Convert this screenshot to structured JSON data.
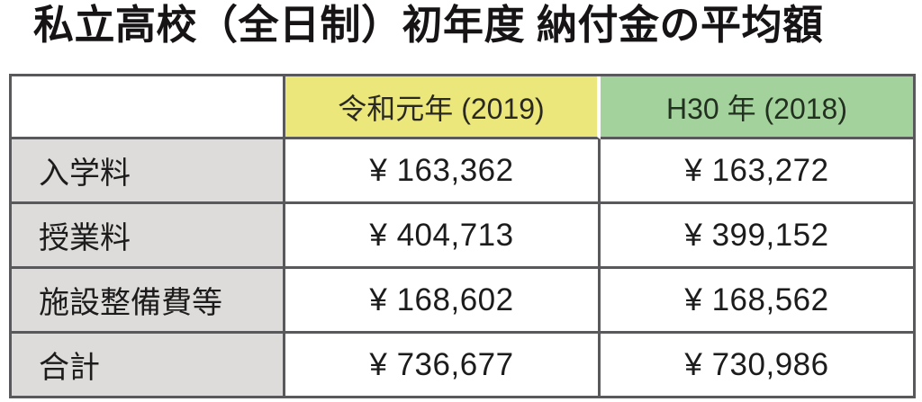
{
  "title": "私立高校（全日制）初年度 納付金の平均額",
  "table": {
    "columns": [
      {
        "label": ""
      },
      {
        "label": "令和元年 (2019)"
      },
      {
        "label": "H30 年 (2018)"
      }
    ],
    "rows": [
      {
        "label": "入学料",
        "values": [
          "¥ 163,362",
          "¥ 163,272"
        ]
      },
      {
        "label": "授業料",
        "values": [
          "¥ 404,713",
          "¥ 399,152"
        ]
      },
      {
        "label": "施設整備費等",
        "values": [
          "¥ 168,602",
          "¥ 168,562"
        ]
      },
      {
        "label": "合計",
        "values": [
          "¥ 736,677",
          "¥ 730,986"
        ]
      }
    ]
  },
  "colors": {
    "header_yellow": "#ece77a",
    "header_green": "#a4d29c",
    "row_label_gray": "#dedcda",
    "border": "#59585a",
    "text": "#1d1c1c"
  },
  "chart_data": {
    "type": "table",
    "title": "私立高校（全日制）初年度 納付金の平均額",
    "categories": [
      "入学料",
      "授業料",
      "施設整備費等",
      "合計"
    ],
    "series": [
      {
        "name": "令和元年 (2019)",
        "values": [
          163362,
          404713,
          168602,
          736677
        ]
      },
      {
        "name": "H30 年 (2018)",
        "values": [
          163272,
          399152,
          168562,
          730986
        ]
      }
    ],
    "unit": "JPY",
    "layout": "rows are fee types, columns are fiscal years, grid on"
  }
}
